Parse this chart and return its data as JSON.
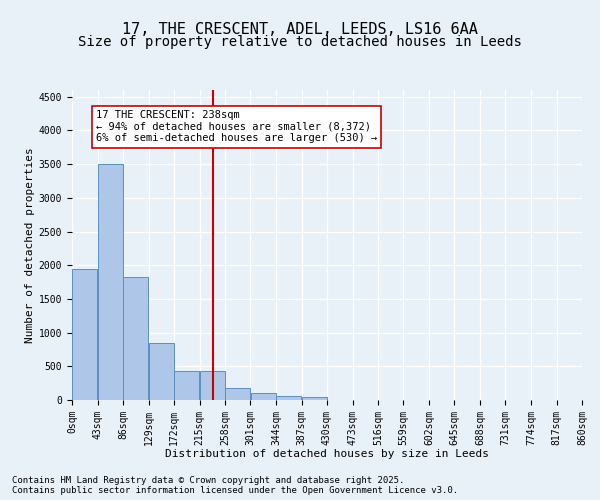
{
  "title1": "17, THE CRESCENT, ADEL, LEEDS, LS16 6AA",
  "title2": "Size of property relative to detached houses in Leeds",
  "xlabel": "Distribution of detached houses by size in Leeds",
  "ylabel": "Number of detached properties",
  "bar_color": "#aec6e8",
  "bar_edge_color": "#5a8fc0",
  "vline_color": "#cc0000",
  "vline_x": 238,
  "annotation_title": "17 THE CRESCENT: 238sqm",
  "annotation_line1": "← 94% of detached houses are smaller (8,372)",
  "annotation_line2": "6% of semi-detached houses are larger (530) →",
  "footer1": "Contains HM Land Registry data © Crown copyright and database right 2025.",
  "footer2": "Contains public sector information licensed under the Open Government Licence v3.0.",
  "categories": [
    "0sqm",
    "43sqm",
    "86sqm",
    "129sqm",
    "172sqm",
    "215sqm",
    "258sqm",
    "301sqm",
    "344sqm",
    "387sqm",
    "430sqm",
    "473sqm",
    "516sqm",
    "559sqm",
    "602sqm",
    "645sqm",
    "688sqm",
    "731sqm",
    "774sqm",
    "817sqm",
    "860sqm"
  ],
  "bin_edges": [
    0,
    43,
    86,
    129,
    172,
    215,
    258,
    301,
    344,
    387,
    430,
    473,
    516,
    559,
    602,
    645,
    688,
    731,
    774,
    817,
    860
  ],
  "bar_heights": [
    1950,
    3500,
    1820,
    840,
    430,
    430,
    180,
    110,
    60,
    40,
    0,
    0,
    0,
    0,
    0,
    0,
    0,
    0,
    0,
    0
  ],
  "ylim": [
    0,
    4600
  ],
  "yticks": [
    0,
    500,
    1000,
    1500,
    2000,
    2500,
    3000,
    3500,
    4000,
    4500
  ],
  "background_color": "#e8f0f8",
  "grid_color": "#ffffff",
  "title_fontsize": 11,
  "subtitle_fontsize": 10,
  "axis_label_fontsize": 8,
  "tick_fontsize": 7,
  "footer_fontsize": 6.5,
  "annotation_fontsize": 7.5
}
